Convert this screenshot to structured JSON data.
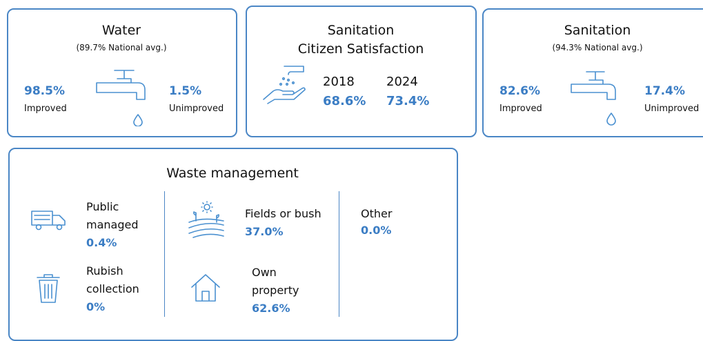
{
  "water": {
    "title": "Water",
    "subtitle": "(89.7% National avg.)",
    "improved": {
      "value": "98.5%",
      "label": "Improved"
    },
    "unimproved": {
      "value": "1.5%",
      "label": "Unimproved"
    }
  },
  "satisfaction": {
    "title_lines": [
      "Sanitation",
      "Citizen Satisfaction"
    ],
    "years": [
      {
        "year": "2018",
        "value": "68.6%"
      },
      {
        "year": "2024",
        "value": "73.4%"
      }
    ]
  },
  "sanitation": {
    "title": "Sanitation",
    "subtitle": "(94.3% National avg.)",
    "improved": {
      "value": "82.6%",
      "label": "Improved"
    },
    "unimproved": {
      "value": "17.4%",
      "label": "Unimproved"
    }
  },
  "waste": {
    "title": "Waste management",
    "items": [
      {
        "label_lines": [
          "Public",
          "managed"
        ],
        "value": "0.4%"
      },
      {
        "label_lines": [
          "Rubish",
          "collection"
        ],
        "value": "0%"
      },
      {
        "label_lines": [
          "Fields or bush"
        ],
        "value": "37.0%"
      },
      {
        "label_lines": [
          "Own",
          "property"
        ],
        "value": "62.6%"
      },
      {
        "label_lines": [
          "Other"
        ],
        "value": "0.0%"
      }
    ]
  }
}
